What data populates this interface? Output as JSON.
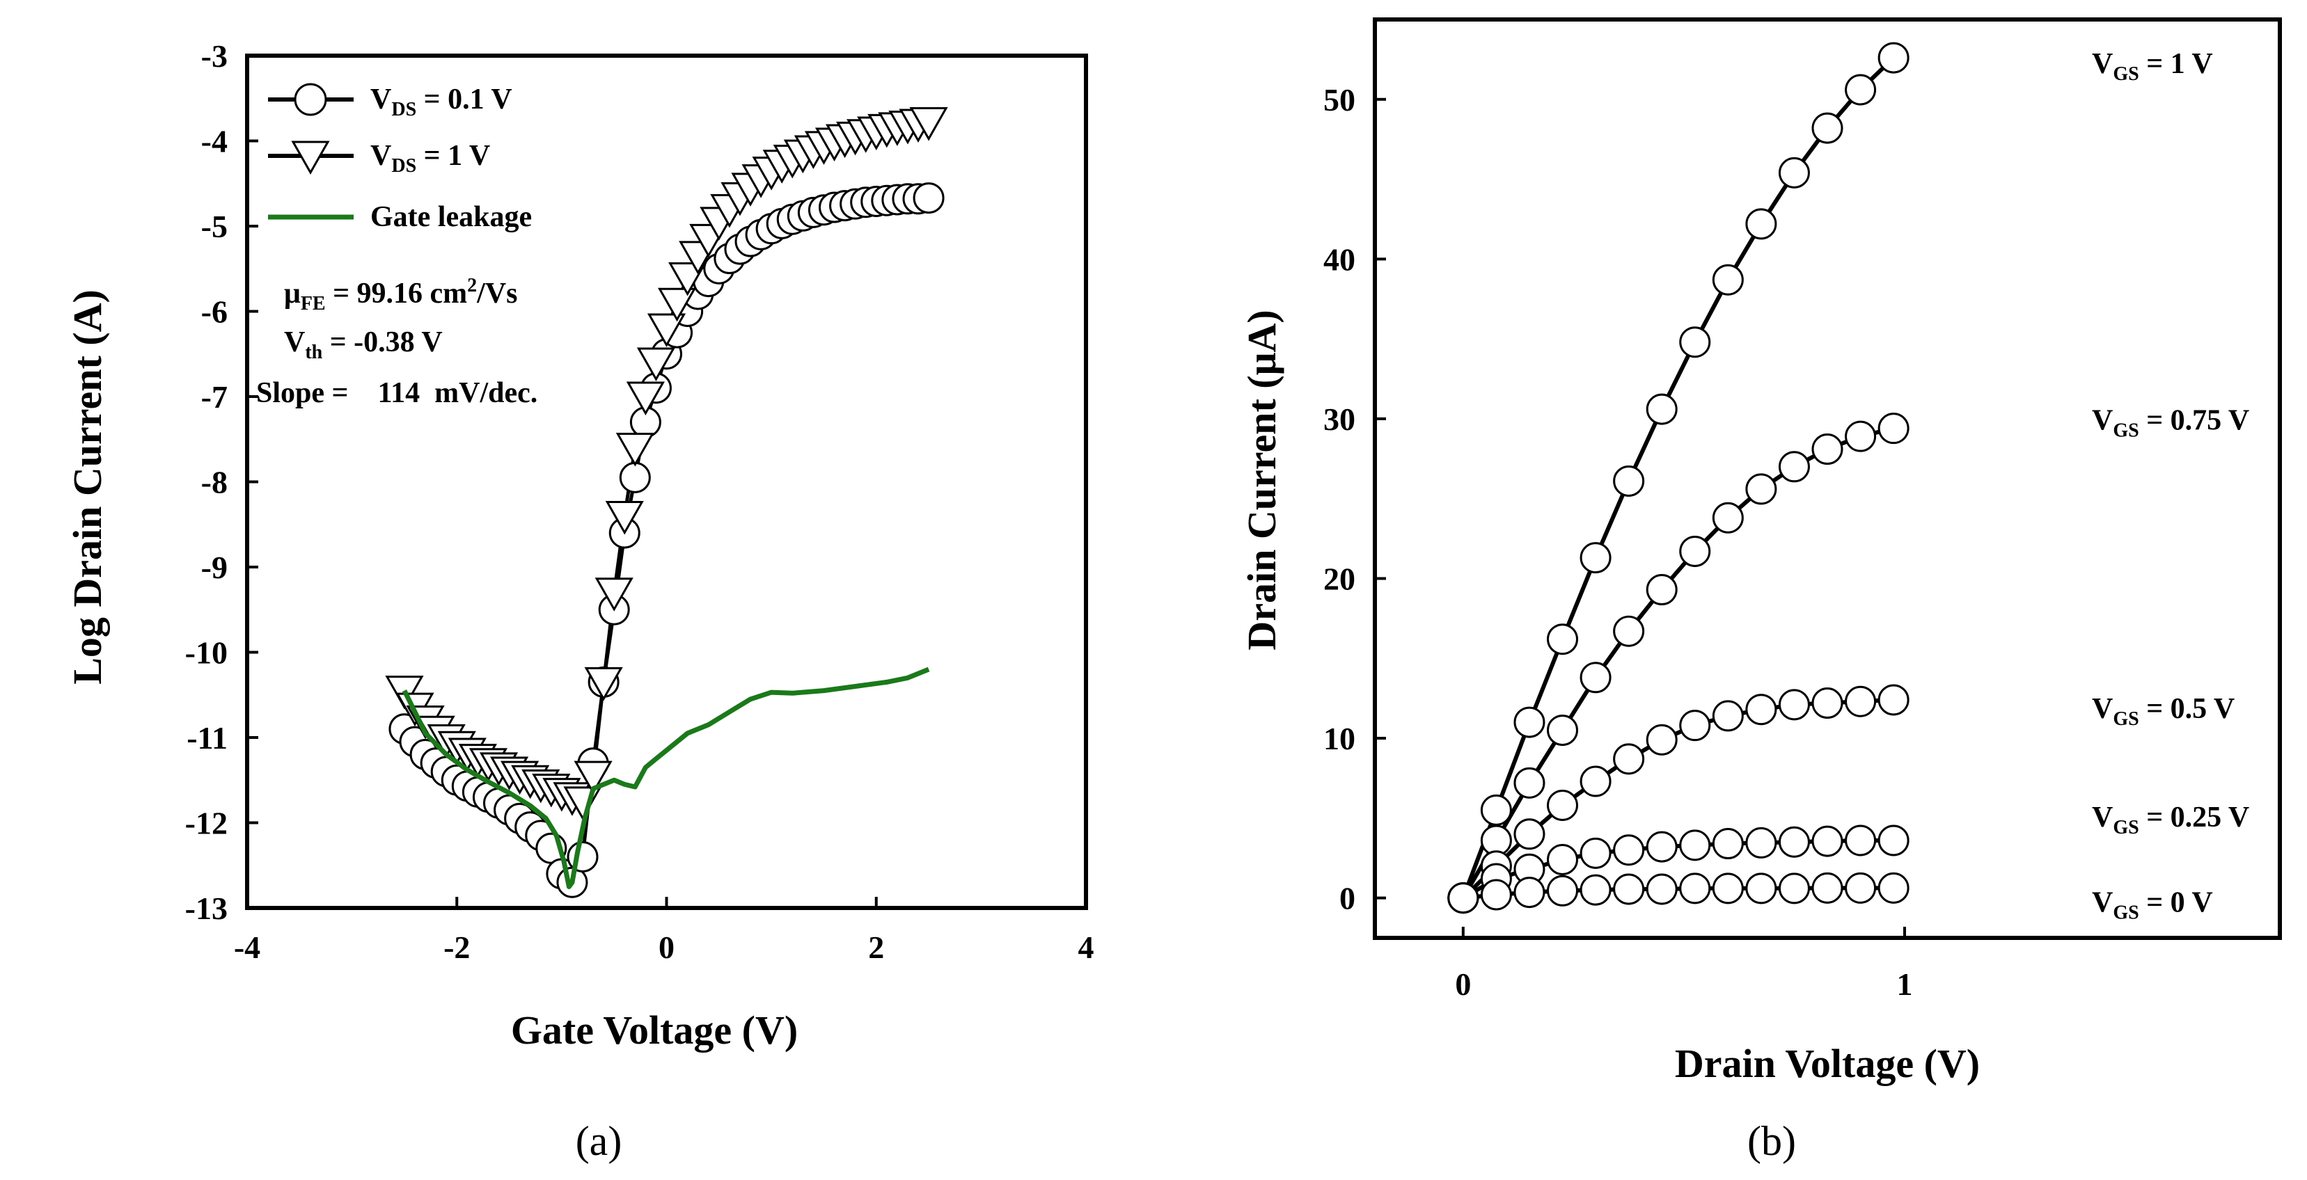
{
  "chart_data": [
    {
      "panel": "(a)",
      "type": "line",
      "xlabel": "Gate Voltage (V)",
      "ylabel": "Log Drain Current (A)",
      "xlim": [
        -4,
        4
      ],
      "ylim": [
        -13,
        -3
      ],
      "xticks": [
        -4,
        -2,
        0,
        2,
        4
      ],
      "yticks": [
        -3,
        -4,
        -5,
        -6,
        -7,
        -8,
        -9,
        -10,
        -11,
        -12,
        -13
      ],
      "series": [
        {
          "name": "V_DS = 0.1 V",
          "label_main": "V",
          "label_sub": "DS",
          "label_rest": " = 0.1 V",
          "marker": "circle",
          "x": [
            -2.5,
            -2.4,
            -2.3,
            -2.2,
            -2.1,
            -2.0,
            -1.9,
            -1.8,
            -1.7,
            -1.6,
            -1.5,
            -1.4,
            -1.3,
            -1.2,
            -1.1,
            -1.0,
            -0.9,
            -0.8,
            -0.7,
            -0.6,
            -0.5,
            -0.4,
            -0.3,
            -0.2,
            -0.1,
            0.0,
            0.1,
            0.2,
            0.3,
            0.4,
            0.5,
            0.6,
            0.7,
            0.8,
            0.9,
            1.0,
            1.1,
            1.2,
            1.3,
            1.4,
            1.5,
            1.6,
            1.7,
            1.8,
            1.9,
            2.0,
            2.1,
            2.2,
            2.3,
            2.4,
            2.5
          ],
          "y": [
            -10.9,
            -11.05,
            -11.2,
            -11.3,
            -11.4,
            -11.5,
            -11.57,
            -11.64,
            -11.7,
            -11.77,
            -11.85,
            -11.95,
            -12.05,
            -12.15,
            -12.3,
            -12.6,
            -12.7,
            -12.4,
            -11.3,
            -10.35,
            -9.5,
            -8.6,
            -7.95,
            -7.3,
            -6.9,
            -6.5,
            -6.25,
            -6.0,
            -5.8,
            -5.65,
            -5.5,
            -5.38,
            -5.27,
            -5.18,
            -5.1,
            -5.03,
            -4.97,
            -4.92,
            -4.88,
            -4.84,
            -4.81,
            -4.78,
            -4.76,
            -4.74,
            -4.72,
            -4.71,
            -4.7,
            -4.69,
            -4.68,
            -4.68,
            -4.67
          ]
        },
        {
          "name": "V_DS = 1 V",
          "label_main": "V",
          "label_sub": "DS",
          "label_rest": " = 1 V",
          "marker": "triangle-down",
          "x": [
            -2.5,
            -2.4,
            -2.3,
            -2.2,
            -2.1,
            -2.0,
            -1.9,
            -1.8,
            -1.7,
            -1.6,
            -1.5,
            -1.4,
            -1.3,
            -1.2,
            -1.1,
            -1.0,
            -0.9,
            -0.8,
            -0.7,
            -0.6,
            -0.5,
            -0.4,
            -0.3,
            -0.2,
            -0.1,
            0.0,
            0.1,
            0.2,
            0.3,
            0.4,
            0.5,
            0.6,
            0.7,
            0.8,
            0.9,
            1.0,
            1.1,
            1.2,
            1.3,
            1.4,
            1.5,
            1.6,
            1.7,
            1.8,
            1.9,
            2.0,
            2.1,
            2.2,
            2.3,
            2.4,
            2.5
          ],
          "y": [
            -10.45,
            -10.65,
            -10.8,
            -10.92,
            -11.02,
            -11.1,
            -11.18,
            -11.25,
            -11.3,
            -11.35,
            -11.4,
            -11.45,
            -11.5,
            -11.55,
            -11.6,
            -11.65,
            -11.7,
            -11.75,
            -11.45,
            -10.35,
            -9.3,
            -8.4,
            -7.6,
            -7.0,
            -6.6,
            -6.2,
            -5.9,
            -5.6,
            -5.35,
            -5.15,
            -4.95,
            -4.8,
            -4.66,
            -4.55,
            -4.45,
            -4.36,
            -4.28,
            -4.22,
            -4.16,
            -4.11,
            -4.06,
            -4.02,
            -3.98,
            -3.95,
            -3.92,
            -3.89,
            -3.86,
            -3.84,
            -3.82,
            -3.8,
            -3.78
          ]
        },
        {
          "name": "Gate leakage",
          "marker": "none",
          "color": "#1a7a1a",
          "x": [
            -2.5,
            -2.3,
            -2.1,
            -1.9,
            -1.7,
            -1.5,
            -1.3,
            -1.15,
            -1.05,
            -0.98,
            -0.93,
            -0.9,
            -0.85,
            -0.78,
            -0.7,
            -0.6,
            -0.5,
            -0.4,
            -0.3,
            -0.2,
            -0.1,
            0.0,
            0.2,
            0.4,
            0.6,
            0.8,
            1.0,
            1.2,
            1.5,
            1.8,
            2.1,
            2.3,
            2.5
          ],
          "y": [
            -10.45,
            -10.95,
            -11.2,
            -11.38,
            -11.52,
            -11.65,
            -11.8,
            -11.95,
            -12.15,
            -12.45,
            -12.75,
            -12.7,
            -12.35,
            -11.95,
            -11.6,
            -11.55,
            -11.5,
            -11.55,
            -11.58,
            -11.35,
            -11.25,
            -11.15,
            -10.95,
            -10.85,
            -10.7,
            -10.55,
            -10.47,
            -10.48,
            -10.45,
            -10.4,
            -10.35,
            -10.3,
            -10.2
          ]
        }
      ],
      "annotations": {
        "mobility": {
          "main": "μ",
          "sub": "FE",
          "rest": " = 99.16 cm",
          "sup": "2",
          "tail": "/Vs"
        },
        "vth": {
          "main": "V",
          "sub": "th",
          "rest": " =  -0.38  V"
        },
        "slope": {
          "text": "Slope =    114  mV/dec."
        }
      }
    },
    {
      "panel": "(b)",
      "type": "line",
      "xlabel": "Drain Voltage (V)",
      "ylabel": "Drain Current (μA)",
      "xlim": [
        -0.2,
        1.85
      ],
      "ylim": [
        -2.5,
        55
      ],
      "xticks": [
        0,
        1
      ],
      "yticks": [
        0,
        10,
        20,
        30,
        40,
        50
      ],
      "x": [
        0,
        0.075,
        0.15,
        0.225,
        0.3,
        0.375,
        0.45,
        0.525,
        0.6,
        0.675,
        0.75,
        0.825,
        0.9,
        0.975
      ],
      "series": [
        {
          "name": "V_GS = 1 V",
          "label_main": "V",
          "label_sub": "GS",
          "label_rest": " = 1 V",
          "marker": "circle",
          "values": [
            0,
            5.5,
            11,
            16.2,
            21.3,
            26.1,
            30.6,
            34.8,
            38.7,
            42.2,
            45.4,
            48.2,
            50.6,
            52.6
          ]
        },
        {
          "name": "V_GS = 0.75 V",
          "label_main": "V",
          "label_sub": "GS",
          "label_rest": " = 0.75 V",
          "marker": "circle",
          "values": [
            0,
            3.6,
            7.2,
            10.5,
            13.8,
            16.7,
            19.3,
            21.7,
            23.8,
            25.6,
            27.0,
            28.1,
            28.9,
            29.4
          ]
        },
        {
          "name": "V_GS = 0.5 V",
          "label_main": "V",
          "label_sub": "GS",
          "label_rest": " = 0.5 V",
          "marker": "circle",
          "values": [
            0,
            2.0,
            4.0,
            5.8,
            7.3,
            8.7,
            9.9,
            10.8,
            11.4,
            11.8,
            12.1,
            12.2,
            12.3,
            12.4
          ]
        },
        {
          "name": "V_GS = 0.25 V",
          "label_main": "V",
          "label_sub": "GS",
          "label_rest": " = 0.25 V",
          "marker": "circle",
          "values": [
            0,
            1.2,
            1.8,
            2.4,
            2.8,
            3.0,
            3.2,
            3.3,
            3.4,
            3.45,
            3.5,
            3.55,
            3.6,
            3.6
          ]
        },
        {
          "name": "V_GS = 0 V",
          "label_main": "V",
          "label_sub": "GS",
          "label_rest": " = 0 V",
          "marker": "circle",
          "values": [
            0,
            0.2,
            0.35,
            0.45,
            0.5,
            0.55,
            0.55,
            0.6,
            0.6,
            0.6,
            0.6,
            0.62,
            0.62,
            0.62
          ]
        }
      ]
    }
  ]
}
